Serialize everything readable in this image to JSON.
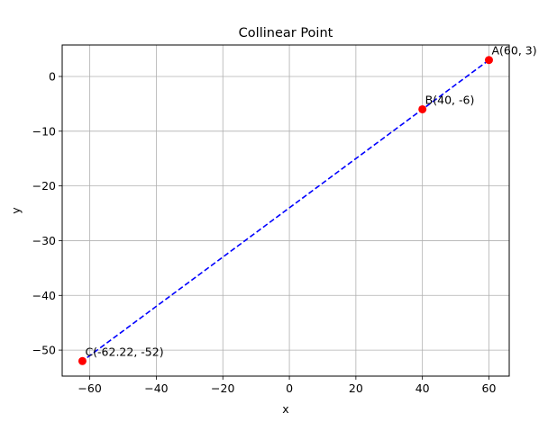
{
  "chart_data": {
    "type": "scatter",
    "title": "Collinear Point",
    "xlabel": "x",
    "ylabel": "y",
    "xlim": [
      -68.3,
      66.1
    ],
    "ylim": [
      -54.75,
      5.75
    ],
    "grid": true,
    "xticks": [
      -60,
      -40,
      -20,
      0,
      20,
      40,
      60
    ],
    "xtick_labels": [
      "−60",
      "−40",
      "−20",
      "0",
      "20",
      "40",
      "60"
    ],
    "yticks": [
      0,
      -10,
      -20,
      -30,
      -40,
      -50
    ],
    "ytick_labels": [
      "0",
      "−10",
      "−20",
      "−30",
      "−40",
      "−50"
    ],
    "points": [
      {
        "x": 60,
        "y": 3,
        "label": "A(60, 3)"
      },
      {
        "x": 40,
        "y": -6,
        "label": "B(40, -6)"
      },
      {
        "x": -62.22,
        "y": -52,
        "label": "C(-62.22, -52)"
      }
    ],
    "line": {
      "x": [
        60,
        -62.22
      ],
      "y": [
        3,
        -52
      ],
      "style": "dashed"
    },
    "colors": {
      "points": "#ff0000",
      "line": "#0000ff",
      "grid": "#b0b0b0"
    }
  }
}
